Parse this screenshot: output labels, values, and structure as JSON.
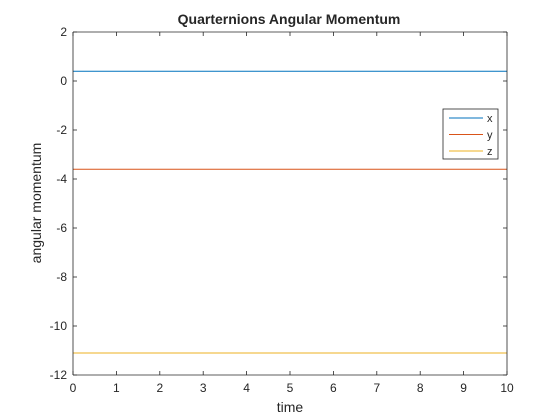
{
  "chart_data": {
    "type": "line",
    "title": "Quarternions Angular Momentum",
    "xlabel": "time",
    "ylabel": "angular momentum",
    "xlim": [
      0,
      10
    ],
    "ylim": [
      -12,
      2
    ],
    "xticks": [
      0,
      1,
      2,
      3,
      4,
      5,
      6,
      7,
      8,
      9,
      10
    ],
    "yticks": [
      2,
      0,
      -2,
      -4,
      -6,
      -8,
      -10,
      -12
    ],
    "grid": false,
    "legend": "right",
    "series": [
      {
        "name": "x",
        "color": "#0072BD",
        "x": [
          0,
          10
        ],
        "y": [
          0.4,
          0.4
        ]
      },
      {
        "name": "y",
        "color": "#D95319",
        "x": [
          0,
          10
        ],
        "y": [
          -3.6,
          -3.6
        ]
      },
      {
        "name": "z",
        "color": "#EDB120",
        "x": [
          0,
          10
        ],
        "y": [
          -11.1,
          -11.1
        ]
      }
    ]
  }
}
